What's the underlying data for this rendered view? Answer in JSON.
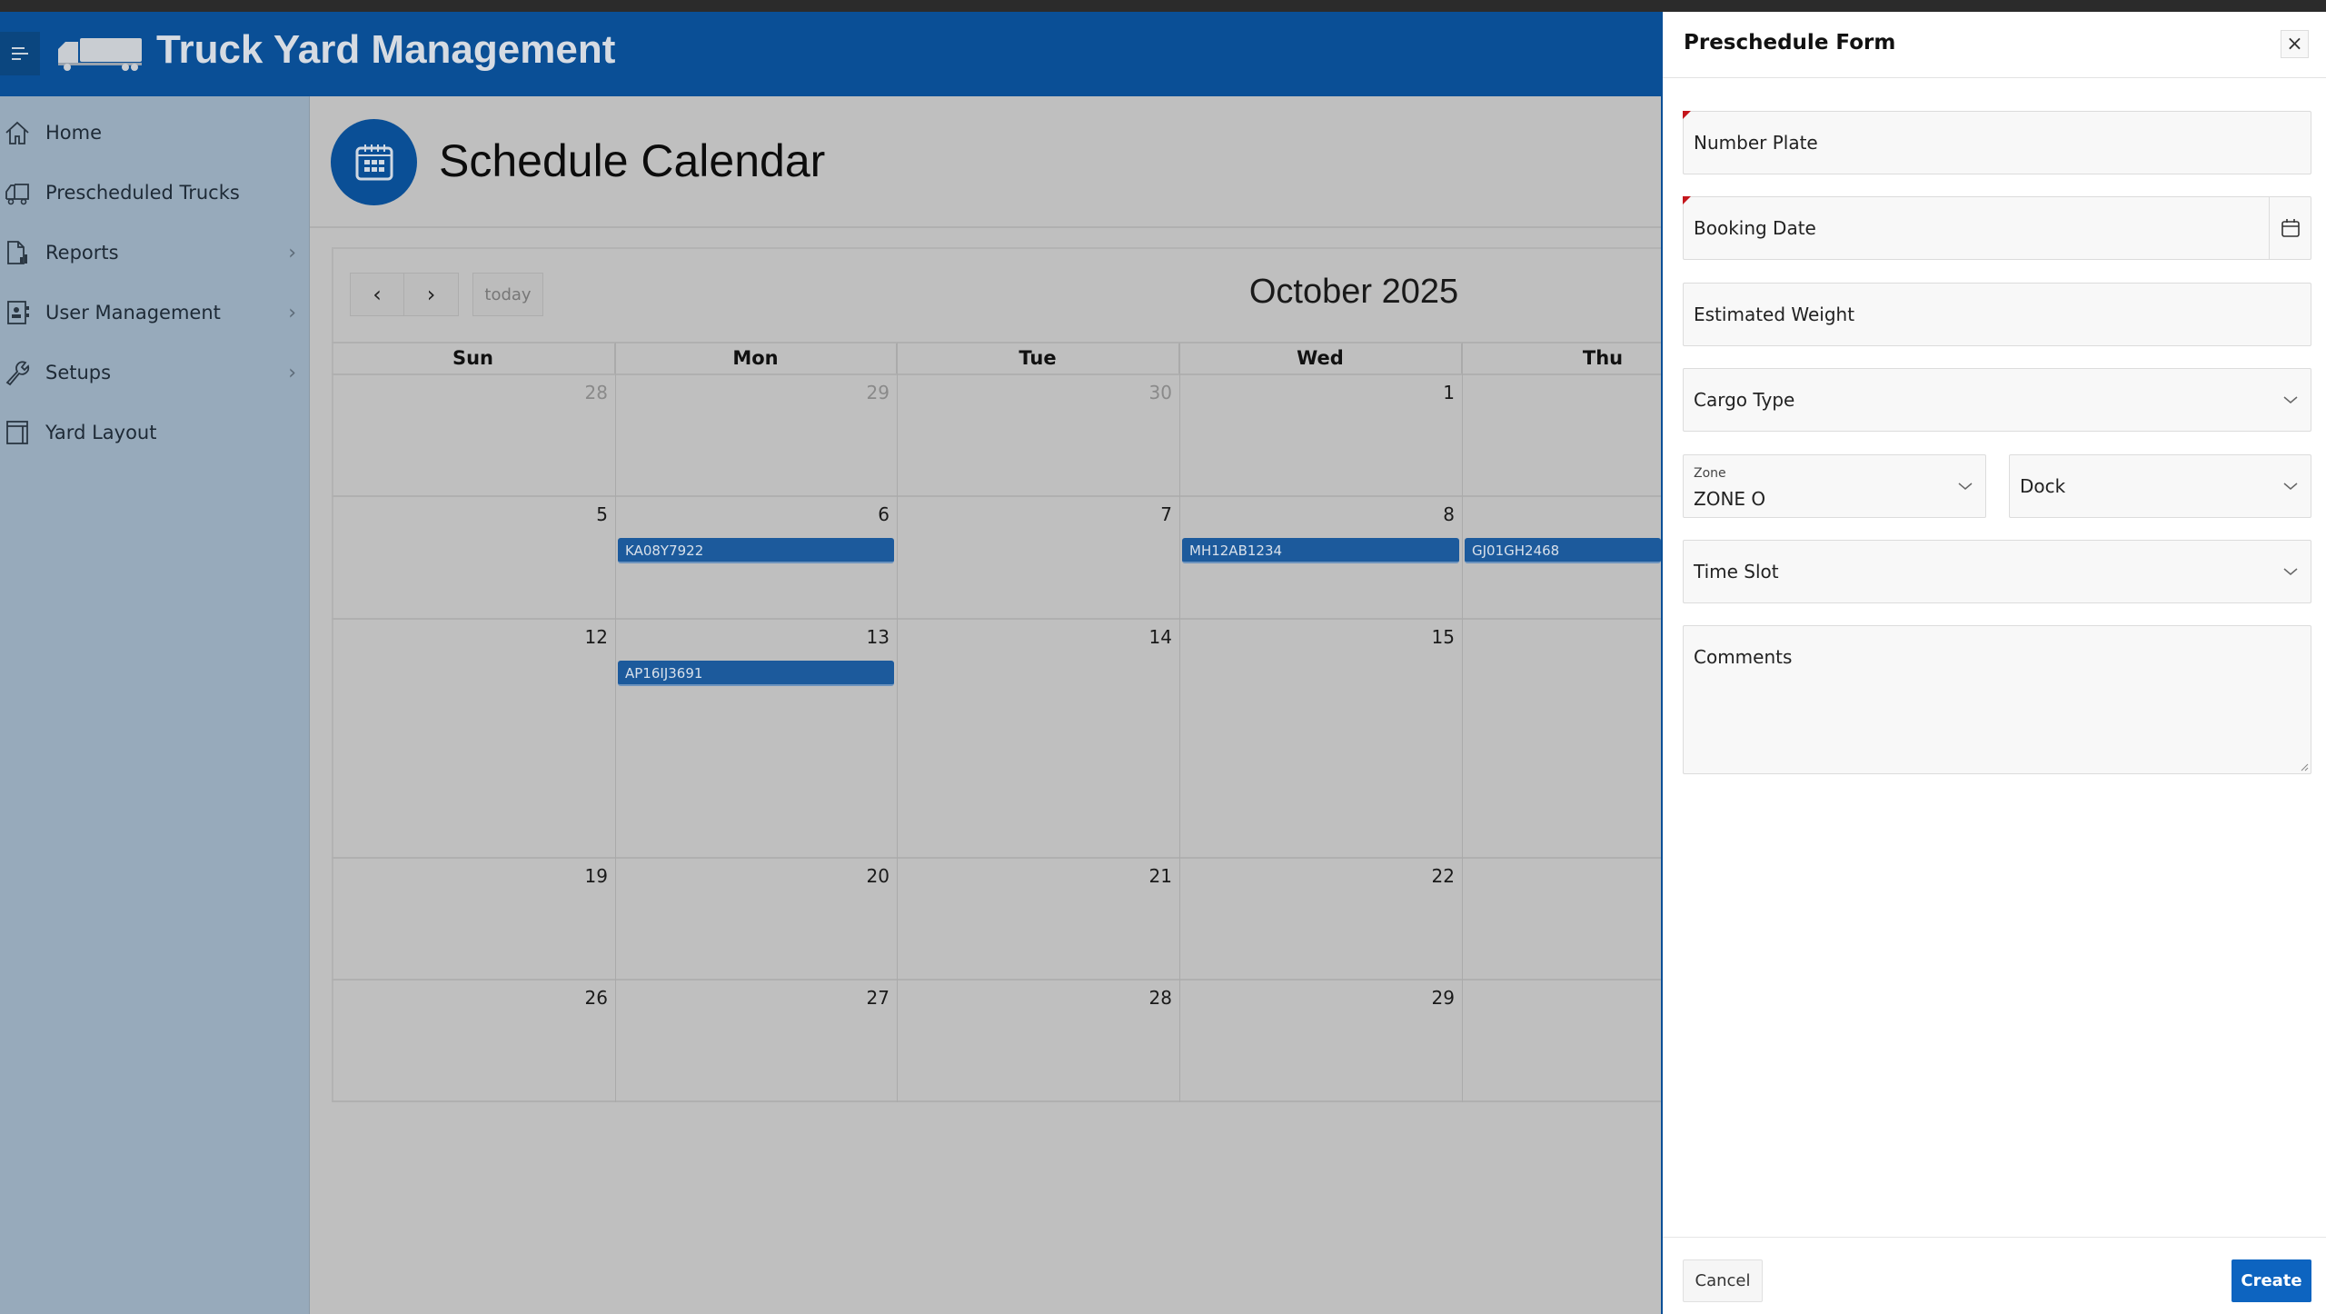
{
  "app": {
    "title": "Truck Yard Management"
  },
  "sidebar": {
    "items": [
      {
        "label": "Home",
        "icon": "home-icon",
        "chevron": false
      },
      {
        "label": "Prescheduled Trucks",
        "icon": "truck-icon",
        "chevron": true
      },
      {
        "label": "Reports",
        "icon": "report-icon",
        "chevron": true
      },
      {
        "label": "User Management",
        "icon": "contacts-icon",
        "chevron": true
      },
      {
        "label": "Setups",
        "icon": "wrench-icon",
        "chevron": true
      },
      {
        "label": "Yard Layout",
        "icon": "layout-icon",
        "chevron": false
      }
    ]
  },
  "page": {
    "title": "Schedule Calendar"
  },
  "calendar": {
    "prev": "‹",
    "next": "›",
    "today": "today",
    "month_title": "October 2025",
    "days_of_week": [
      "Sun",
      "Mon",
      "Tue",
      "Wed",
      "Thu"
    ],
    "weeks": [
      [
        "28",
        "29",
        "30",
        "1",
        ""
      ],
      [
        "5",
        "6",
        "7",
        "8",
        ""
      ],
      [
        "12",
        "13",
        "14",
        "15",
        ""
      ],
      [
        "19",
        "20",
        "21",
        "22",
        ""
      ],
      [
        "26",
        "27",
        "28",
        "29",
        ""
      ]
    ],
    "events": [
      {
        "label": "KA08Y7922",
        "date": "6"
      },
      {
        "label": "MH12AB1234",
        "date": "8"
      },
      {
        "label": "GJ01GH2468",
        "date": "9"
      },
      {
        "label": "AP16IJ3691",
        "date": "13"
      }
    ],
    "event_color": "#1c5a9c"
  },
  "drawer": {
    "title": "Preschedule Form",
    "close": "×",
    "fields": {
      "number_plate": "Number Plate",
      "booking_date": "Booking Date",
      "estimated_weight": "Estimated Weight",
      "cargo_type": "Cargo Type",
      "zone_label": "Zone",
      "zone_value": "ZONE O",
      "dock": "Dock",
      "time_slot": "Time Slot",
      "comments": "Comments"
    },
    "cancel": "Cancel",
    "create": "Create",
    "accent": "#0d64c0"
  }
}
